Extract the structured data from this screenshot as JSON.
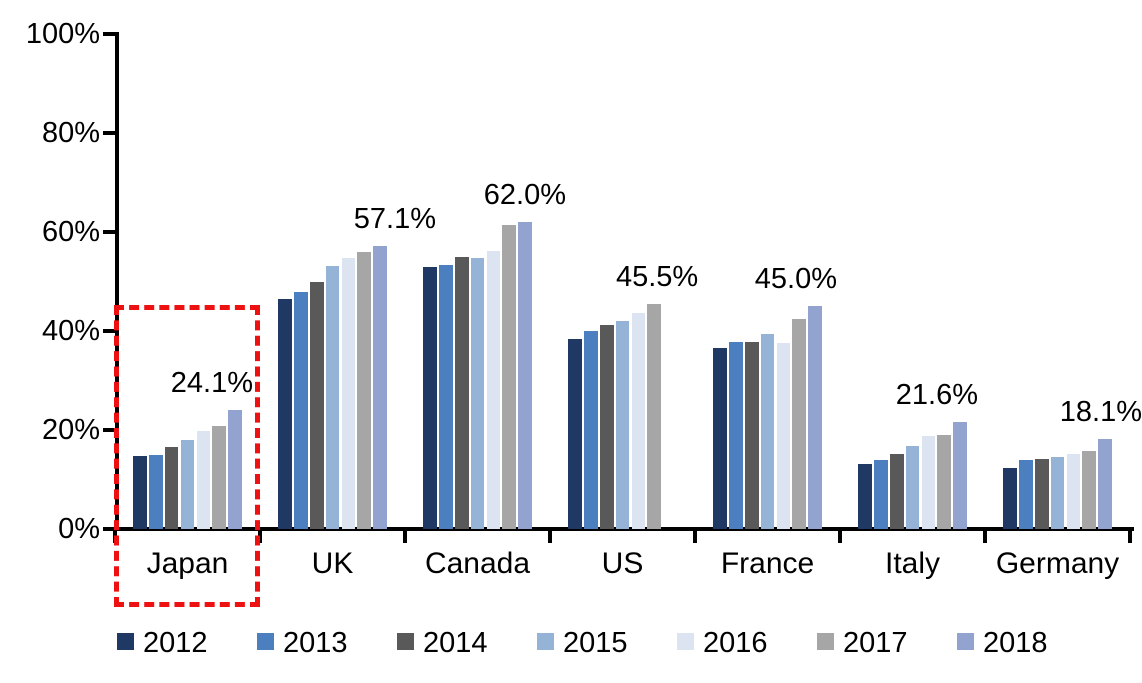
{
  "chart_data": {
    "type": "bar",
    "title": "",
    "xlabel": "",
    "ylabel": "",
    "ylim": [
      0,
      100
    ],
    "ytick_step": 20,
    "ytick_labels": [
      "0%",
      "20%",
      "40%",
      "60%",
      "80%",
      "100%"
    ],
    "grid": false,
    "legend_position": "bottom",
    "categories": [
      "Japan",
      "UK",
      "Canada",
      "US",
      "France",
      "Italy",
      "Germany"
    ],
    "series": [
      {
        "name": "2012",
        "color": "#1F3864",
        "values": [
          14.8,
          46.4,
          53.0,
          38.3,
          36.6,
          13.1,
          12.4
        ]
      },
      {
        "name": "2013",
        "color": "#4C7FBF",
        "values": [
          15.0,
          47.8,
          53.4,
          40.1,
          37.7,
          13.9,
          13.9
        ]
      },
      {
        "name": "2014",
        "color": "#595959",
        "values": [
          16.5,
          49.9,
          54.9,
          41.3,
          37.7,
          15.2,
          14.2
        ]
      },
      {
        "name": "2015",
        "color": "#95B3D7",
        "values": [
          17.9,
          53.1,
          54.7,
          42.1,
          39.4,
          16.8,
          14.6
        ]
      },
      {
        "name": "2016",
        "color": "#DCE4F1",
        "values": [
          19.9,
          54.8,
          56.2,
          43.6,
          37.6,
          18.8,
          15.2
        ]
      },
      {
        "name": "2017",
        "color": "#A6A6A6",
        "values": [
          20.8,
          55.9,
          61.4,
          45.5,
          42.4,
          19.0,
          15.8
        ]
      },
      {
        "name": "2018",
        "color": "#93A3CF",
        "values": [
          24.1,
          57.1,
          62.0,
          null,
          45.0,
          21.6,
          18.1
        ]
      }
    ],
    "annotations": [
      {
        "category": "Japan",
        "text": "24.1%"
      },
      {
        "category": "UK",
        "text": "57.1%"
      },
      {
        "category": "Canada",
        "text": "62.0%"
      },
      {
        "category": "US",
        "text": "45.5%"
      },
      {
        "category": "France",
        "text": "45.0%"
      },
      {
        "category": "Italy",
        "text": "21.6%"
      },
      {
        "category": "Germany",
        "text": "18.1%"
      }
    ],
    "highlight": {
      "category": "Japan",
      "shape": "dashed-box",
      "color": "#ee1111"
    }
  }
}
